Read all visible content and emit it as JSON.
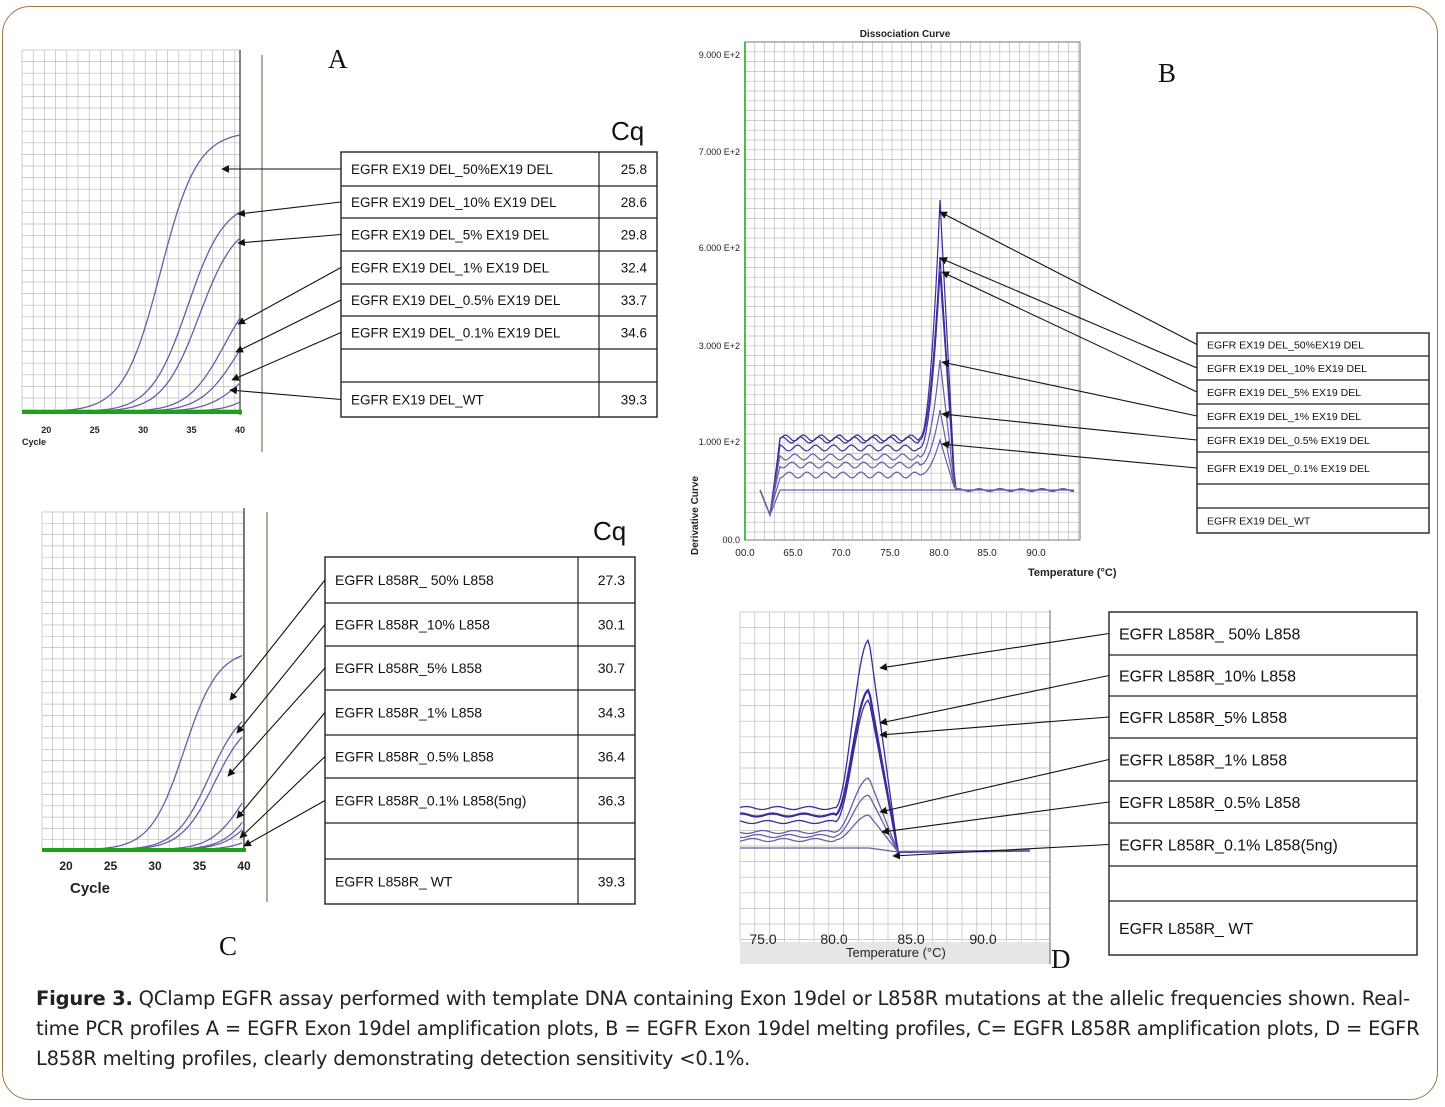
{
  "figure": {
    "caption_label": "Figure 3.",
    "caption_text": "QClamp EGFR assay performed with template DNA containing Exon 19del or L858R mutations at the allelic frequencies shown. Real-time PCR profiles A = EGFR Exon 19del amplification plots, B = EGFR Exon 19del melting profiles, C= EGFR L858R amplification plots, D = EGFR L858R melting profiles, clearly demonstrating detection sensitivity <0.1%."
  },
  "colors": {
    "curve": "#6a5ca8",
    "curve_dark": "#3a2c9a",
    "baseline": "#1aa31a",
    "frame": "#a5773f",
    "grid": "#bdbdbd"
  },
  "panels": {
    "A": {
      "letter": "A",
      "cq_header": "Cq",
      "x_axis_label": "Cycle",
      "x_ticks": [
        "20",
        "25",
        "30",
        "35",
        "40"
      ],
      "rows": [
        {
          "label": "EGFR EX19 DEL_50%EX19 DEL",
          "cq": "25.8"
        },
        {
          "label": "EGFR EX19 DEL_10% EX19 DEL",
          "cq": "28.6"
        },
        {
          "label": "EGFR EX19 DEL_5% EX19 DEL",
          "cq": "29.8"
        },
        {
          "label": "EGFR EX19 DEL_1% EX19 DEL",
          "cq": "32.4"
        },
        {
          "label": "EGFR EX19 DEL_0.5% EX19 DEL",
          "cq": "33.7"
        },
        {
          "label": "EGFR EX19 DEL_0.1% EX19 DEL",
          "cq": "34.6"
        },
        {
          "label": "",
          "cq": ""
        },
        {
          "label": "EGFR EX19 DEL_WT",
          "cq": "39.3"
        }
      ]
    },
    "B": {
      "letter": "B",
      "title": "Dissociation Curve",
      "y_axis_label": "Derivative Curve",
      "x_axis_label": "Temperature (°C)",
      "y_ticks": [
        "9.000 E+2",
        "7.000 E+2",
        "6.000 E+2",
        "3.000 E+2",
        "1.000 E+2",
        "00.0"
      ],
      "x_ticks": [
        "00.0",
        "65.0",
        "70.0",
        "75.0",
        "80.0",
        "85.0",
        "90.0"
      ],
      "rows": [
        {
          "label": "EGFR EX19 DEL_50%EX19 DEL"
        },
        {
          "label": "EGFR EX19 DEL_10% EX19 DEL"
        },
        {
          "label": "EGFR EX19 DEL_5% EX19 DEL"
        },
        {
          "label": "EGFR EX19 DEL_1% EX19 DEL"
        },
        {
          "label": "EGFR EX19 DEL_0.5% EX19 DEL"
        },
        {
          "label": "EGFR EX19 DEL_0.1% EX19 DEL"
        },
        {
          "label": ""
        },
        {
          "label": "EGFR EX19 DEL_WT"
        }
      ]
    },
    "C": {
      "letter": "C",
      "cq_header": "Cq",
      "x_axis_label": "Cycle",
      "x_ticks": [
        "20",
        "25",
        "30",
        "35",
        "40"
      ],
      "rows": [
        {
          "label": "EGFR L858R_ 50% L858",
          "cq": "27.3"
        },
        {
          "label": "EGFR L858R_10% L858",
          "cq": "30.1"
        },
        {
          "label": "EGFR L858R_5%  L858",
          "cq": "30.7"
        },
        {
          "label": "EGFR L858R_1% L858",
          "cq": "34.3"
        },
        {
          "label": "EGFR L858R_0.5%  L858",
          "cq": "36.4"
        },
        {
          "label": "EGFR L858R_0.1% L858(5ng)",
          "cq": "36.3"
        },
        {
          "label": "",
          "cq": ""
        },
        {
          "label": "EGFR L858R_ WT",
          "cq": "39.3"
        }
      ]
    },
    "D": {
      "letter": "D",
      "x_axis_label": "Temperature (°C)",
      "x_ticks": [
        "75.0",
        "80.0",
        "85.0",
        "90.0"
      ],
      "rows": [
        {
          "label": "EGFR L858R_ 50% L858"
        },
        {
          "label": "EGFR L858R_10% L858"
        },
        {
          "label": "EGFR L858R_5%  L858"
        },
        {
          "label": "EGFR L858R_1%  L858"
        },
        {
          "label": "EGFR L858R_0.5%  L858"
        },
        {
          "label": "EGFR L858R_0.1% L858(5ng)"
        },
        {
          "label": ""
        },
        {
          "label": "EGFR L858R_ WT"
        }
      ]
    }
  }
}
